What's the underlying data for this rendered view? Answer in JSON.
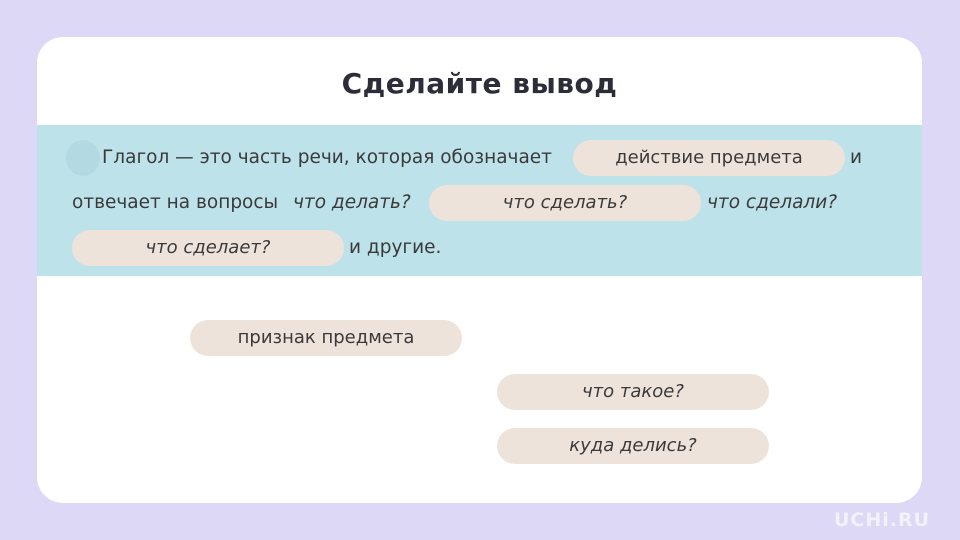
{
  "title": "Сделайте вывод",
  "sentence": {
    "line1_text": "Глагол — это часть речи, которая обозначает",
    "line1_end": "и",
    "line2_text": "отвечает на вопросы",
    "line2_q1": "что делать?",
    "line2_q2": "что сделали?",
    "line3_end": "и другие."
  },
  "placed_answers": [
    "действие предмета",
    "что сделать?",
    "что сделает?"
  ],
  "options": [
    "признак предмета",
    "что такое?",
    "куда делись?"
  ],
  "logo": "UCHi.RU",
  "colors": {
    "background": "#dcd8f6",
    "band": "#bde2ea",
    "pill": "#eee3da"
  }
}
